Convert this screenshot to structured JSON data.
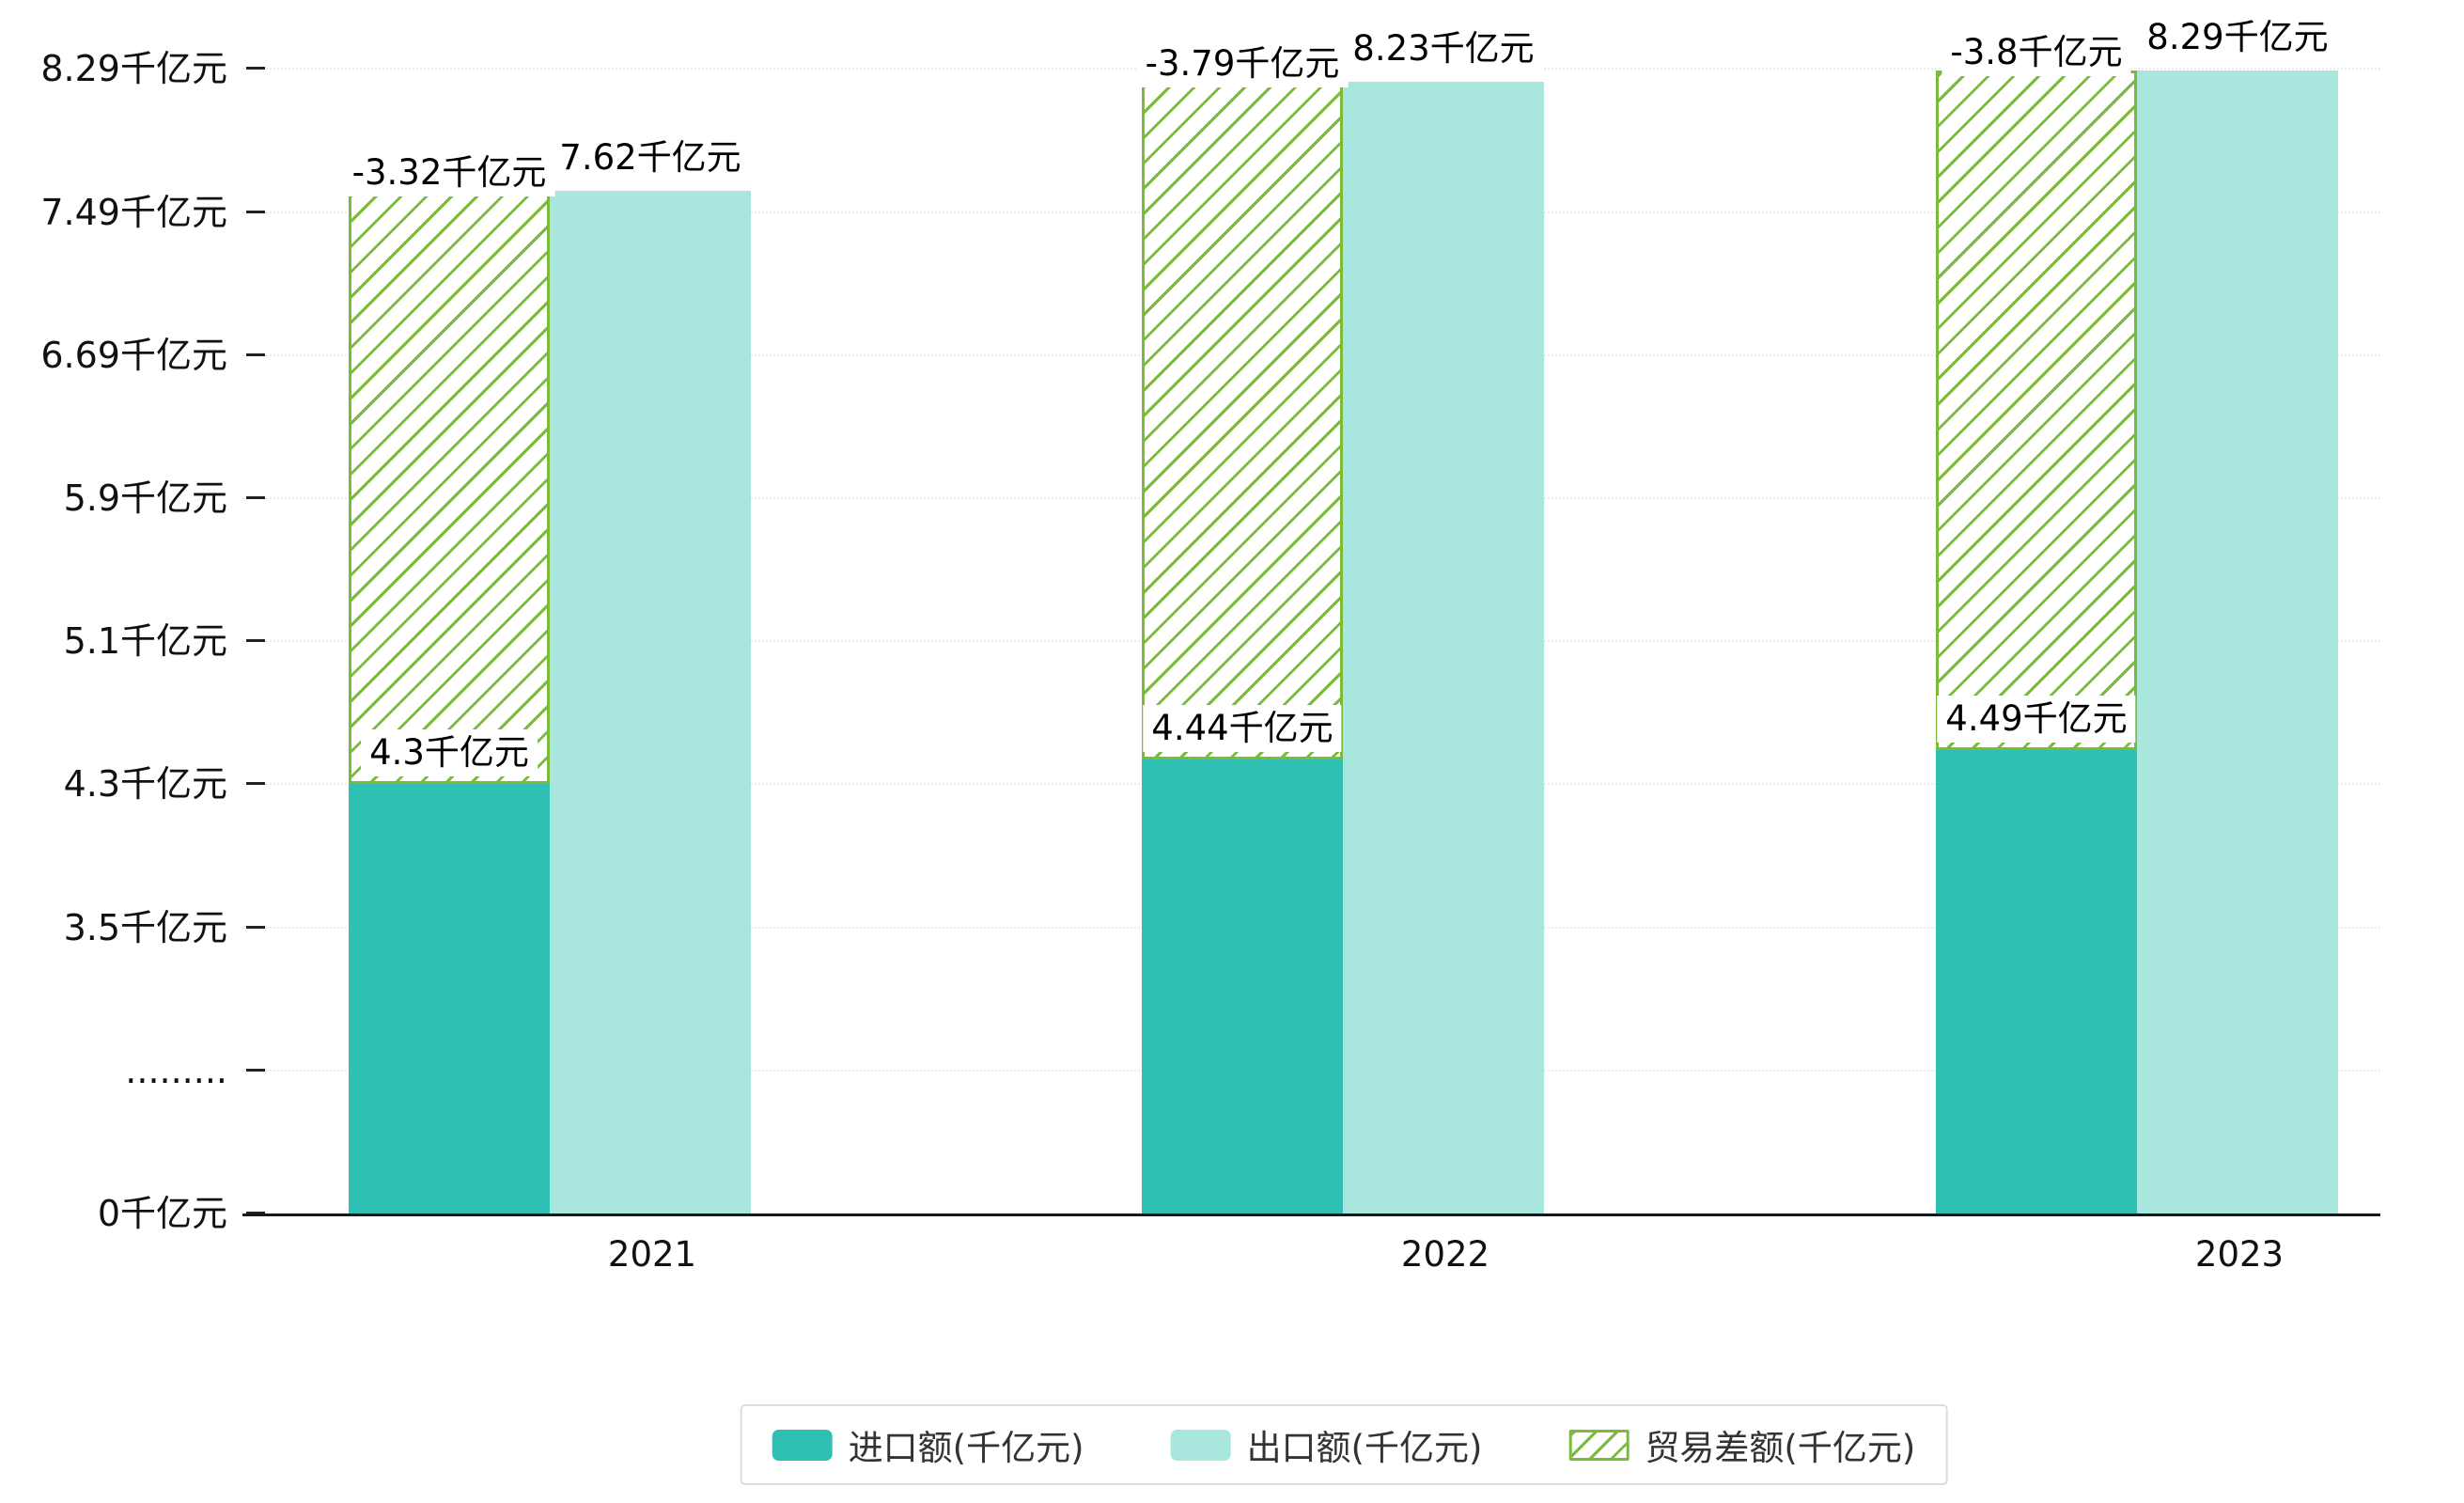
{
  "chart_data": {
    "type": "bar",
    "title": "",
    "categories": [
      "2021",
      "2022",
      "2023"
    ],
    "series": [
      {
        "name": "进口额(千亿元)",
        "values": [
          4.3,
          4.44,
          4.49
        ],
        "data_labels": [
          "4.3千亿元",
          "4.44千亿元",
          "4.49千亿元"
        ],
        "color": "#2fbfb3",
        "style": "solid"
      },
      {
        "name": "出口额(千亿元)",
        "values": [
          7.62,
          8.23,
          8.29
        ],
        "data_labels": [
          "7.62千亿元",
          "8.23千亿元",
          "8.29千亿元"
        ],
        "color": "#a9e6de",
        "style": "solid"
      },
      {
        "name": "贸易差额(千亿元)",
        "values": [
          -3.32,
          -3.79,
          -3.8
        ],
        "data_labels": [
          "-3.32千亿元",
          "-3.79千亿元",
          "-3.8千亿元"
        ],
        "color": "#7cba3a",
        "style": "hatched",
        "note": "hatched outline bar spans from import bar top to export bar top"
      }
    ],
    "y_axis": {
      "tick_labels": [
        "0千亿元",
        ".........",
        "3.5千亿元",
        "4.3千亿元",
        "5.1千亿元",
        "5.9千亿元",
        "6.69千亿元",
        "7.49千亿元",
        "8.29千亿元"
      ],
      "tick_values": [
        0,
        null,
        3.5,
        4.3,
        5.1,
        5.9,
        6.69,
        7.49,
        8.29
      ],
      "axis_break": "between 0 and 3.5"
    },
    "xlabel": "",
    "ylabel": "",
    "grid": true,
    "legend_position": "bottom"
  },
  "colors": {
    "background": "#ffffff",
    "axis": "#17171c",
    "grid": "#eaeaea",
    "text": "#000000",
    "legend_border": "#dcdcdc"
  }
}
